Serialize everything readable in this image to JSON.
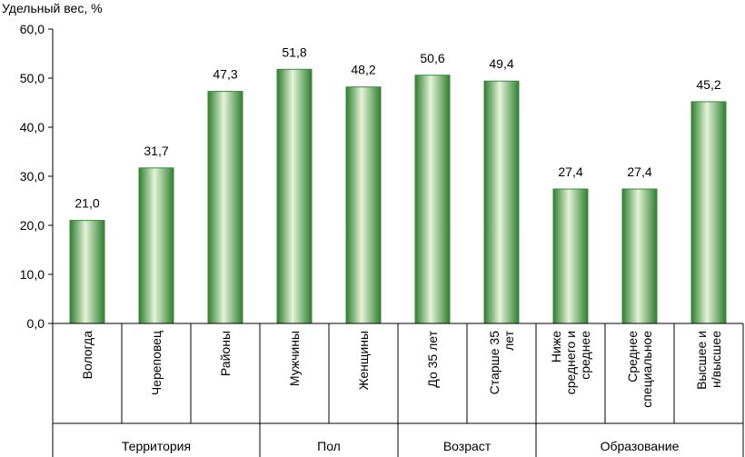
{
  "chart_data": {
    "type": "bar",
    "ylabel": "Удельный вес, %",
    "ylim": [
      0,
      60
    ],
    "yticks": [
      "0,0",
      "10,0",
      "20,0",
      "30,0",
      "40,0",
      "50,0",
      "60,0"
    ],
    "grid": false,
    "legend": "none",
    "bar_color": "#3a8a3a",
    "categories": [
      [
        "Вологда"
      ],
      [
        "Череповец"
      ],
      [
        "Районы"
      ],
      [
        "Мужчины"
      ],
      [
        "Женщины"
      ],
      [
        "До 35 лет"
      ],
      [
        "Старше 35",
        "лет"
      ],
      [
        "Ниже",
        "среднего и",
        "среднее"
      ],
      [
        "Среднее",
        "специальное"
      ],
      [
        "Высшее и",
        "н/высшее"
      ]
    ],
    "values": [
      21.0,
      31.7,
      47.3,
      51.8,
      48.2,
      50.6,
      49.4,
      27.4,
      27.4,
      45.2
    ],
    "value_labels": [
      "21,0",
      "31,7",
      "47,3",
      "51,8",
      "48,2",
      "50,6",
      "49,4",
      "27,4",
      "27,4",
      "45,2"
    ],
    "groups": [
      {
        "label": "Территория",
        "count": 3
      },
      {
        "label": "Пол",
        "count": 2
      },
      {
        "label": "Возраст",
        "count": 2
      },
      {
        "label": "Образование",
        "count": 3
      }
    ]
  }
}
